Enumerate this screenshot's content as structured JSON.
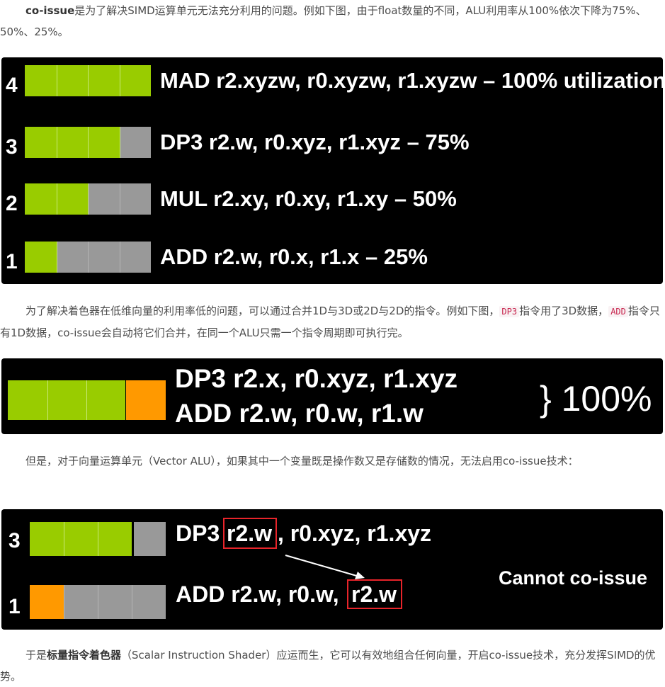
{
  "paragraphs": {
    "p1": {
      "bold": "co-issue",
      "text": "是为了解决SIMD运算单元无法充分利用的问题。例如下图，由于float数量的不同，ALU利用率从100%依次下降为75%、50%、25%。"
    },
    "p2": {
      "before": "为了解决着色器在低维向量的利用率低的问题，可以通过合并1D与3D或2D与2D的指令。例如下图，",
      "code1": "DP3",
      "middle": "指令用了3D数据，",
      "code2": "ADD",
      "after": "指令只有1D数据，co-issue会自动将它们合并，在同一个ALU只需一个指令周期即可执行完。"
    },
    "p3": {
      "text": "但是，对于向量运算单元（Vector ALU），如果其中一个变量既是操作数又是存储数的情况，无法启用co-issue技术："
    },
    "p4": {
      "before": "于是",
      "bold": "标量指令着色器",
      "after": "（Scalar Instruction Shader）应运而生，它可以有效地组合任何向量，开启co-issue技术，充分发挥SIMD的优势。"
    }
  },
  "figure1": {
    "rows": [
      {
        "count": "4",
        "instruction": "MAD r2.xyzw, r0.xyzw, r1.xyzw – 100% utilization",
        "used": 4,
        "total": 4
      },
      {
        "count": "3",
        "instruction": "DP3 r2.w, r0.xyz, r1.xyz – 75%",
        "used": 3,
        "total": 4
      },
      {
        "count": "2",
        "instruction": "MUL r2.xy, r0.xy, r1.xy – 50%",
        "used": 2,
        "total": 4
      },
      {
        "count": "1",
        "instruction": "ADD r2.w, r0.x, r1.x – 25%",
        "used": 1,
        "total": 4
      }
    ]
  },
  "figure2": {
    "line1": "DP3 r2.x, r0.xyz, r1.xyz",
    "line2": "ADD r2.w, r0.w, r1.w",
    "result": "} 100%",
    "green_cells": 3,
    "orange_cells": 1
  },
  "figure3": {
    "row1": {
      "count": "3",
      "op": "DP3",
      "dest": "r2.w",
      "rest": ", r0.xyz, r1.xyz",
      "used": 3
    },
    "row2": {
      "count": "1",
      "prefix": "ADD r2.w, r0.w, ",
      "src": "r2.w",
      "used": 1
    },
    "note": "Cannot co-issue"
  },
  "colors": {
    "used": "#99cc00",
    "unused": "#999999",
    "coissue": "#ff9900",
    "highlight": "#e8242a"
  }
}
